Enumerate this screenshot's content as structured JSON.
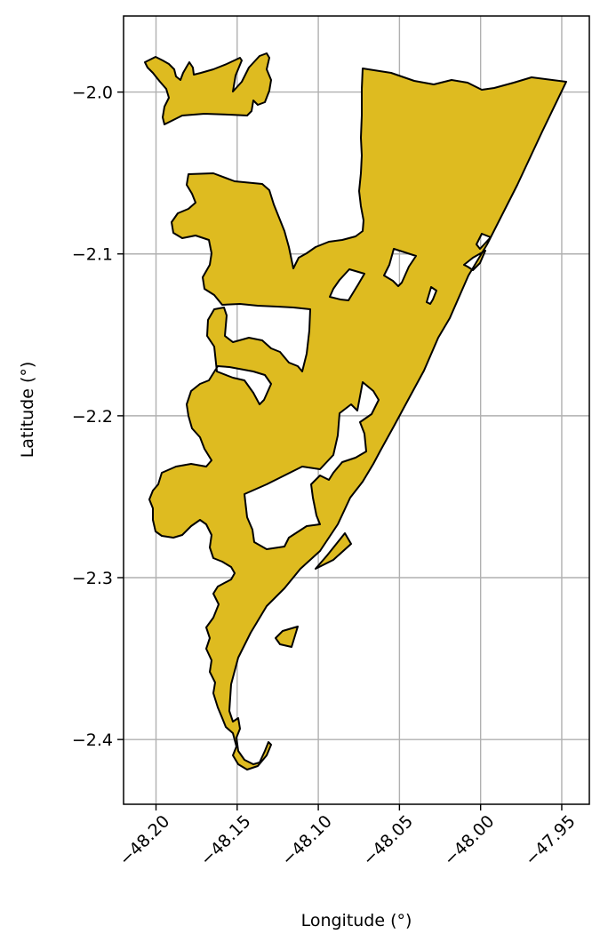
{
  "chart_data": {
    "type": "map",
    "xlabel": "Longitude (°)",
    "ylabel": "Latitude (°)",
    "xlim": [
      -48.22,
      -47.933
    ],
    "ylim": [
      -2.44,
      -1.953
    ],
    "grid": true,
    "xticks": [
      {
        "value": -48.2,
        "label": "−48.20"
      },
      {
        "value": -48.15,
        "label": "−48.15"
      },
      {
        "value": -48.1,
        "label": "−48.10"
      },
      {
        "value": -48.05,
        "label": "−48.05"
      },
      {
        "value": -48.0,
        "label": "−48.00"
      },
      {
        "value": -47.95,
        "label": "−47.95"
      }
    ],
    "yticks": [
      {
        "value": -2.0,
        "label": "−2.0"
      },
      {
        "value": -2.1,
        "label": "−2.1"
      },
      {
        "value": -2.2,
        "label": "−2.2"
      },
      {
        "value": -2.3,
        "label": "−2.3"
      },
      {
        "value": -2.4,
        "label": "−2.4"
      }
    ],
    "fill_color": "#DEBB20",
    "edge_color": "#000000",
    "grid_color": "#b0b0b0"
  }
}
